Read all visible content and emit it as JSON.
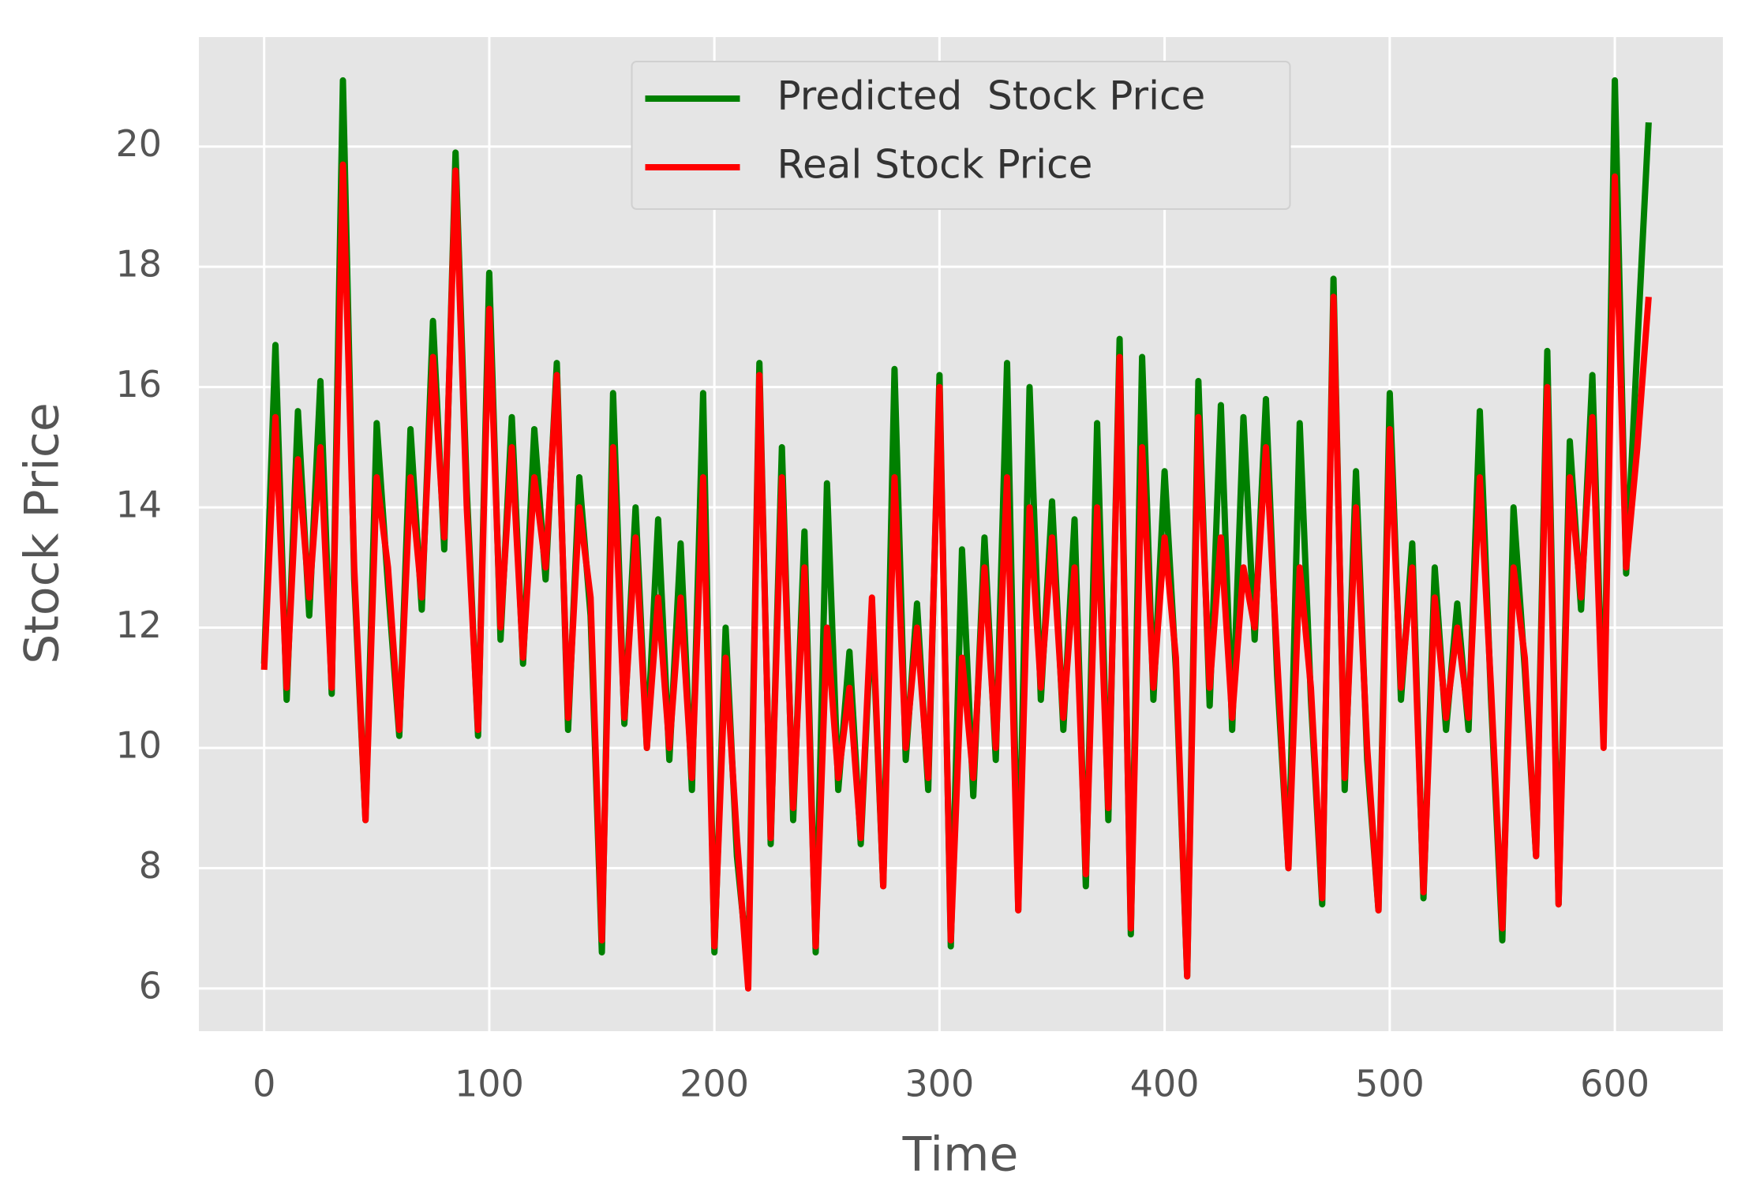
{
  "chart_data": {
    "type": "line",
    "x_label": "Time",
    "y_label": "Stock Price",
    "x": [
      0,
      5,
      10,
      15,
      20,
      25,
      30,
      35,
      40,
      45,
      50,
      55,
      60,
      65,
      70,
      75,
      80,
      85,
      90,
      95,
      100,
      105,
      110,
      115,
      120,
      125,
      130,
      135,
      140,
      145,
      150,
      155,
      160,
      165,
      170,
      175,
      180,
      185,
      190,
      195,
      200,
      205,
      210,
      215,
      220,
      225,
      230,
      235,
      240,
      245,
      250,
      255,
      260,
      265,
      270,
      275,
      280,
      285,
      290,
      295,
      300,
      305,
      310,
      315,
      320,
      325,
      330,
      335,
      340,
      345,
      350,
      355,
      360,
      365,
      370,
      375,
      380,
      385,
      390,
      395,
      400,
      405,
      410,
      415,
      420,
      425,
      430,
      435,
      440,
      445,
      450,
      455,
      460,
      465,
      470,
      475,
      480,
      485,
      490,
      495,
      500,
      505,
      510,
      515,
      520,
      525,
      530,
      535,
      540,
      545,
      550,
      555,
      560,
      565,
      570,
      575,
      580,
      585,
      590,
      595,
      600,
      605,
      610,
      615
    ],
    "series": [
      {
        "name": "Predicted  Stock Price",
        "color": "#008000",
        "values": [
          11.4,
          16.7,
          10.8,
          15.6,
          12.2,
          16.1,
          10.9,
          21.1,
          12.8,
          8.8,
          15.4,
          12.7,
          10.2,
          15.3,
          12.3,
          17.1,
          13.3,
          19.9,
          14.3,
          10.2,
          17.9,
          11.8,
          15.5,
          11.4,
          15.3,
          12.8,
          16.4,
          10.3,
          14.5,
          12.2,
          6.6,
          15.9,
          10.4,
          14.0,
          10.0,
          13.8,
          9.8,
          13.4,
          9.3,
          15.9,
          6.6,
          12.0,
          8.2,
          6.3,
          16.4,
          8.4,
          15.0,
          8.8,
          13.6,
          6.6,
          14.4,
          9.3,
          11.6,
          8.4,
          12.3,
          7.7,
          16.3,
          9.8,
          12.4,
          9.3,
          16.2,
          6.7,
          13.3,
          9.2,
          13.5,
          9.8,
          16.4,
          7.3,
          16.0,
          10.8,
          14.1,
          10.3,
          13.8,
          7.7,
          15.4,
          8.8,
          16.8,
          6.9,
          16.5,
          10.8,
          14.6,
          11.3,
          6.2,
          16.1,
          10.7,
          15.7,
          10.3,
          15.5,
          11.8,
          15.8,
          11.2,
          8.0,
          15.4,
          10.8,
          7.4,
          17.8,
          9.3,
          14.6,
          9.8,
          7.3,
          15.9,
          10.8,
          13.4,
          7.5,
          13.0,
          10.3,
          12.4,
          10.3,
          15.6,
          10.8,
          6.8,
          14.0,
          11.3,
          8.2,
          16.6,
          7.4,
          15.1,
          12.3,
          16.2,
          10.1,
          21.1,
          12.9,
          16.7,
          20.4
        ]
      },
      {
        "name": "Real Stock Price",
        "color": "#ff0000",
        "values": [
          11.3,
          15.5,
          11.0,
          14.8,
          12.5,
          15.0,
          11.0,
          19.7,
          13.0,
          8.8,
          14.5,
          13.0,
          10.3,
          14.5,
          12.5,
          16.5,
          13.5,
          19.6,
          14.0,
          10.3,
          17.3,
          12.0,
          15.0,
          11.5,
          14.5,
          13.0,
          16.2,
          10.5,
          14.0,
          12.5,
          6.8,
          15.0,
          10.5,
          13.5,
          10.0,
          12.5,
          10.0,
          12.5,
          9.5,
          14.5,
          6.7,
          11.5,
          8.5,
          6.0,
          16.2,
          8.5,
          14.5,
          9.0,
          13.0,
          6.7,
          12.0,
          9.5,
          11.0,
          8.5,
          12.5,
          7.7,
          14.5,
          10.0,
          12.0,
          9.5,
          16.0,
          6.8,
          11.5,
          9.5,
          13.0,
          10.0,
          14.5,
          7.3,
          14.0,
          11.0,
          13.5,
          10.5,
          13.0,
          7.9,
          14.0,
          9.0,
          16.5,
          7.0,
          15.0,
          11.0,
          13.5,
          11.5,
          6.2,
          15.5,
          11.0,
          13.5,
          10.5,
          13.0,
          12.0,
          15.0,
          11.5,
          8.0,
          13.0,
          11.0,
          7.5,
          17.5,
          9.5,
          14.0,
          10.0,
          7.3,
          15.3,
          11.0,
          13.0,
          7.6,
          12.5,
          10.5,
          12.0,
          10.5,
          14.5,
          11.0,
          7.0,
          13.0,
          11.5,
          8.2,
          16.0,
          7.4,
          14.5,
          12.5,
          15.5,
          10.0,
          19.5,
          13.0,
          15.0,
          17.5
        ]
      }
    ],
    "xlim": [
      -29,
      648
    ],
    "xticks": [
      0,
      100,
      200,
      300,
      400,
      500,
      600
    ],
    "ylim": [
      5.29,
      21.82
    ],
    "yticks": [
      6,
      8,
      10,
      12,
      14,
      16,
      18,
      20
    ],
    "grid": true,
    "legend": "upper center"
  }
}
